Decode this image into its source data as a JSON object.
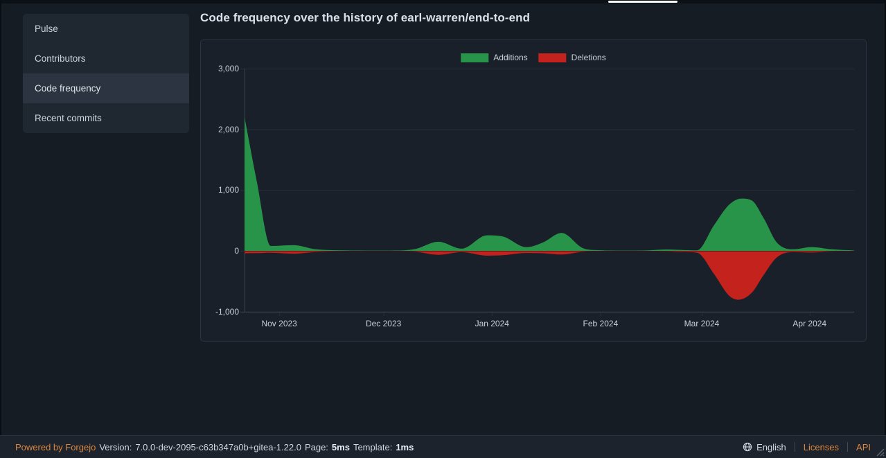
{
  "window": {
    "tab_indicator": "active-tab"
  },
  "sidebar": {
    "items": [
      {
        "label": "Pulse",
        "active": false
      },
      {
        "label": "Contributors",
        "active": false
      },
      {
        "label": "Code frequency",
        "active": true
      },
      {
        "label": "Recent commits",
        "active": false
      }
    ]
  },
  "page": {
    "title": "Code frequency over the history of earl-warren/end-to-end"
  },
  "chart_data": {
    "type": "area",
    "title": "Code frequency over the history of earl-warren/end-to-end",
    "legend_position": "top-center",
    "grid": true,
    "ylim": [
      -1000,
      3000
    ],
    "y_ticks": [
      {
        "label": "3,000",
        "value": 3000
      },
      {
        "label": "2,000",
        "value": 2000
      },
      {
        "label": "1,000",
        "value": 1000
      },
      {
        "label": "0",
        "value": 0
      },
      {
        "label": "-1,000",
        "value": -1000
      }
    ],
    "x_ticks": [
      {
        "label": "Nov 2023",
        "pos": 0.057
      },
      {
        "label": "Dec 2023",
        "pos": 0.228
      },
      {
        "label": "Jan 2024",
        "pos": 0.406
      },
      {
        "label": "Feb 2024",
        "pos": 0.584
      },
      {
        "label": "Mar 2024",
        "pos": 0.75
      },
      {
        "label": "Apr 2024",
        "pos": 0.927
      }
    ],
    "series": [
      {
        "name": "Additions",
        "color": "#27944a",
        "points": [
          [
            0.0,
            2200
          ],
          [
            0.02,
            1150
          ],
          [
            0.043,
            80
          ],
          [
            0.08,
            95
          ],
          [
            0.117,
            25
          ],
          [
            0.16,
            8
          ],
          [
            0.2,
            5
          ],
          [
            0.24,
            5
          ],
          [
            0.278,
            25
          ],
          [
            0.318,
            150
          ],
          [
            0.356,
            35
          ],
          [
            0.398,
            255
          ],
          [
            0.424,
            235
          ],
          [
            0.462,
            60
          ],
          [
            0.49,
            140
          ],
          [
            0.52,
            295
          ],
          [
            0.555,
            45
          ],
          [
            0.578,
            12
          ],
          [
            0.615,
            5
          ],
          [
            0.655,
            6
          ],
          [
            0.69,
            22
          ],
          [
            0.715,
            16
          ],
          [
            0.742,
            8
          ],
          [
            0.77,
            420
          ],
          [
            0.795,
            760
          ],
          [
            0.815,
            860
          ],
          [
            0.832,
            830
          ],
          [
            0.852,
            530
          ],
          [
            0.873,
            140
          ],
          [
            0.9,
            25
          ],
          [
            0.93,
            62
          ],
          [
            0.963,
            25
          ],
          [
            1.0,
            6
          ]
        ]
      },
      {
        "name": "Deletions",
        "color": "#c4221c",
        "points": [
          [
            0.0,
            -40
          ],
          [
            0.02,
            -38
          ],
          [
            0.043,
            -32
          ],
          [
            0.08,
            -48
          ],
          [
            0.117,
            -20
          ],
          [
            0.16,
            -6
          ],
          [
            0.2,
            -4
          ],
          [
            0.24,
            -4
          ],
          [
            0.278,
            -12
          ],
          [
            0.318,
            -65
          ],
          [
            0.356,
            -22
          ],
          [
            0.398,
            -80
          ],
          [
            0.424,
            -72
          ],
          [
            0.462,
            -35
          ],
          [
            0.49,
            -40
          ],
          [
            0.52,
            -60
          ],
          [
            0.555,
            -16
          ],
          [
            0.578,
            -6
          ],
          [
            0.615,
            -4
          ],
          [
            0.655,
            -5
          ],
          [
            0.69,
            -10
          ],
          [
            0.715,
            -18
          ],
          [
            0.742,
            -30
          ],
          [
            0.77,
            -380
          ],
          [
            0.795,
            -740
          ],
          [
            0.81,
            -805
          ],
          [
            0.832,
            -690
          ],
          [
            0.852,
            -390
          ],
          [
            0.873,
            -110
          ],
          [
            0.9,
            -22
          ],
          [
            0.93,
            -28
          ],
          [
            0.963,
            -10
          ],
          [
            1.0,
            -4
          ]
        ]
      }
    ]
  },
  "footer": {
    "powered_link": "Powered by Forgejo",
    "version_label": "Version:",
    "version": "7.0.0-dev-2095-c63b347a0b+gitea-1.22.0",
    "page_label": "Page:",
    "page_time": "5ms",
    "template_label": "Template:",
    "template_time": "1ms",
    "language": "English",
    "licenses": "Licenses",
    "api": "API"
  },
  "colors": {
    "additions": "#27944a",
    "deletions": "#c4221c",
    "accent_orange": "#d9873e",
    "page_bg": "#151c24",
    "card_bg": "#19202a"
  }
}
